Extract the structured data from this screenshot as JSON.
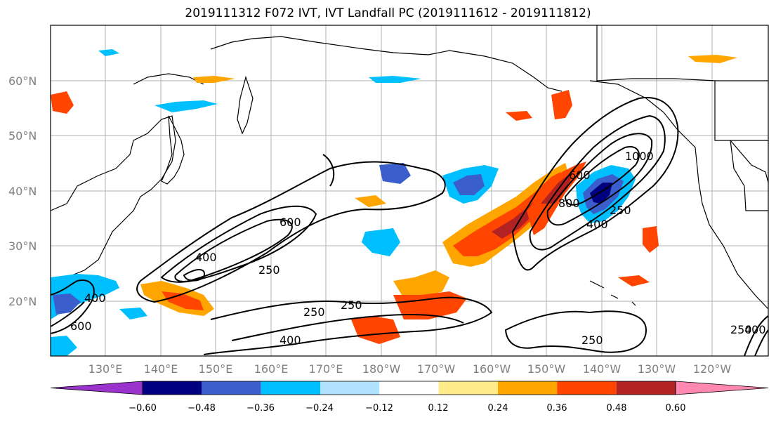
{
  "title": "2019111312 F072 IVT, IVT Landfall PC (2019111612 - 2019111812)",
  "map": {
    "lat_labels": [
      "60°N",
      "50°N",
      "40°N",
      "30°N",
      "20°N"
    ],
    "lon_labels": [
      "130°E",
      "140°E",
      "150°E",
      "160°E",
      "170°E",
      "180°W",
      "170°W",
      "160°W",
      "150°W",
      "140°W",
      "130°W",
      "120°W"
    ],
    "contour_labels": [
      "600",
      "400",
      "250",
      "250",
      "250",
      "400",
      "400",
      "600",
      "800",
      "600",
      "1000",
      "400",
      "250",
      "250",
      "250",
      "400"
    ]
  },
  "colorbar": {
    "colors": [
      "#9933cc",
      "#000080",
      "#3a5fcd",
      "#00bfff",
      "#b0e2ff",
      "#ffffff",
      "#ffeb8a",
      "#ffa500",
      "#ff4500",
      "#b22222",
      "#ff88b0"
    ],
    "tick_labels": [
      "−0.60",
      "−0.48",
      "−0.36",
      "−0.24",
      "−0.12",
      "0.12",
      "0.24",
      "0.36",
      "0.48",
      "0.60"
    ]
  }
}
